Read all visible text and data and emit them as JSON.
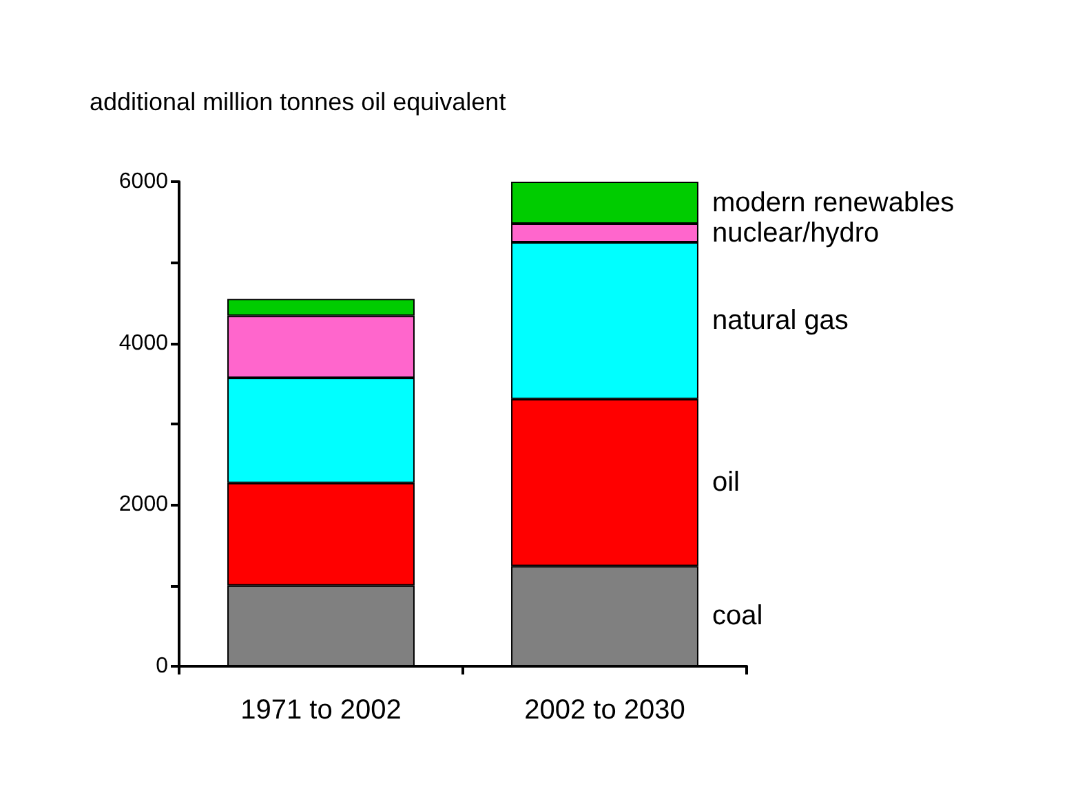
{
  "chart_data": {
    "type": "bar",
    "title": "additional million tonnes oil equivalent",
    "categories": [
      "1971 to 2002",
      "2002 to 2030"
    ],
    "stacked": true,
    "legend": false,
    "grid": false,
    "series": [
      {
        "name": "coal",
        "color": "#808080",
        "values": [
          1000,
          1240
        ]
      },
      {
        "name": "oil",
        "color": "#ff0000",
        "values": [
          1270,
          2070
        ]
      },
      {
        "name": "natural gas",
        "color": "#00ffff",
        "values": [
          1300,
          1940
        ]
      },
      {
        "name": "nuclear/hydro",
        "color": "#ff66cc",
        "values": [
          770,
          230
        ]
      },
      {
        "name": "modern renewables",
        "color": "#00cc00",
        "values": [
          210,
          520
        ]
      }
    ],
    "ylim": [
      0,
      6000
    ],
    "yticks": [
      0,
      {
        "value": 1000,
        "label": null
      },
      2000,
      {
        "value": 3000,
        "label": null
      },
      4000,
      {
        "value": 5000,
        "label": null
      },
      6000
    ]
  }
}
